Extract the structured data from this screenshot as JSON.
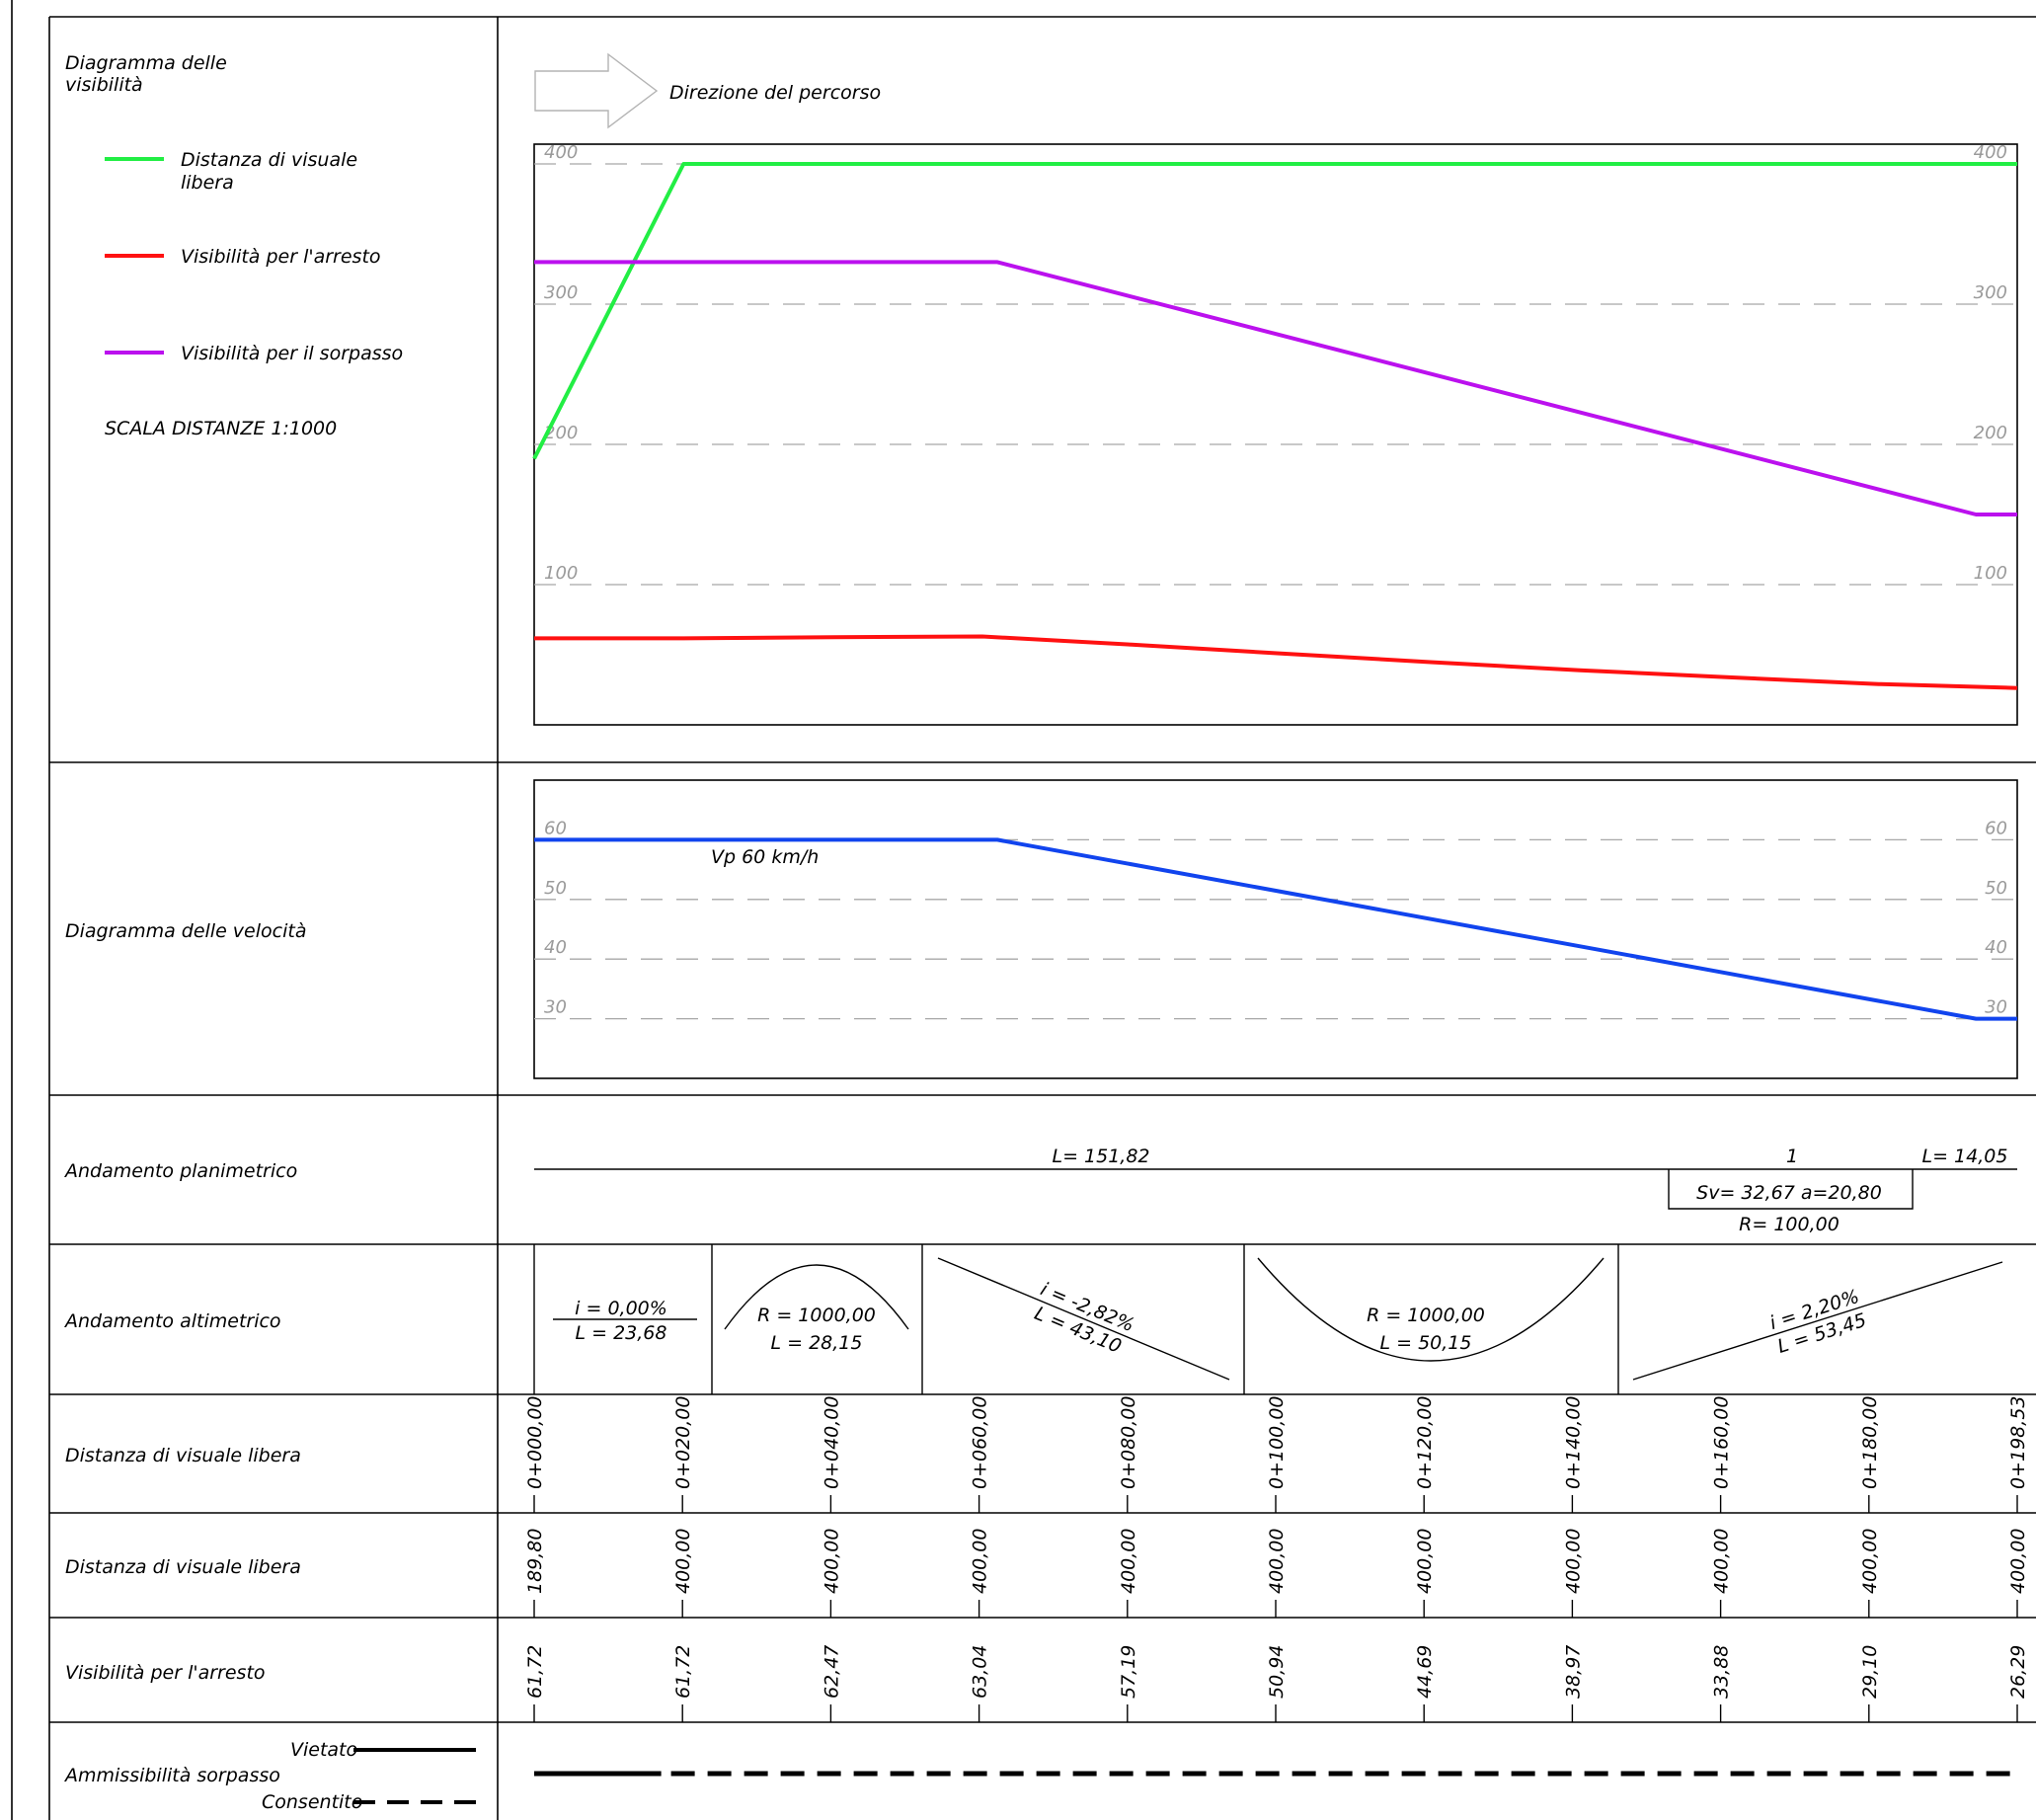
{
  "labels": {
    "visibility_diagram": [
      "Diagramma  delle",
      "visibilità"
    ],
    "direction": "Direzione  del  percorso",
    "legend_free_sight": [
      "Distanza  di  visuale",
      "libera"
    ],
    "legend_stop": "Visibilità  per  l'arresto",
    "legend_overtake": "Visibilità  per  il  sorpasso",
    "scale": "SCALA  DISTANZE      1:1000",
    "speed_diagram": "Diagramma  delle  velocità",
    "speed_note": "Vp  60  km/h",
    "planimetric": "Andamento  planimetrico",
    "altimetric": "Andamento  altimetrico",
    "row_stations": "Distanza  di  visuale  libera",
    "row_free_sight": "Distanza  di  visuale  libera",
    "row_stop": "Visibilità  per  l'arresto",
    "row_overtake": "Ammissibilità  sorpasso",
    "forbidden": "Vietato",
    "allowed": "Consentito"
  },
  "planimetric": {
    "tangent_1": "L=  151,82",
    "curve_index": "1",
    "curve_params": "Sv=  32,67    a=20,80",
    "radius": "R=  100,00",
    "tangent_2": "L=  14,05"
  },
  "altimetric": {
    "seg1": [
      "i  =  0,00%",
      "L  =  23,68"
    ],
    "seg2": [
      "R  =  1000,00",
      "L  =  28,15"
    ],
    "seg3": [
      "i  =  -2,82%",
      "L  =  43,10"
    ],
    "seg4": [
      "R  =  1000,00",
      "L  =  50,15"
    ],
    "seg5": [
      "i  =  2,20%",
      "L  =  53,45"
    ]
  },
  "stations": [
    "0+000,00",
    "0+020,00",
    "0+040,00",
    "0+060,00",
    "0+080,00",
    "0+100,00",
    "0+120,00",
    "0+140,00",
    "0+160,00",
    "0+180,00",
    "0+198,53"
  ],
  "free_sight_values": [
    "189,80",
    "400,00",
    "400,00",
    "400,00",
    "400,00",
    "400,00",
    "400,00",
    "400,00",
    "400,00",
    "400,00",
    "400,00"
  ],
  "stop_values": [
    "61,72",
    "61,72",
    "62,47",
    "63,04",
    "57,19",
    "50,94",
    "44,69",
    "38,97",
    "33,88",
    "29,10",
    "26,29"
  ],
  "colors": {
    "free_sight": "#22ee44",
    "stop": "#ff1111",
    "overtake": "#bb11ee",
    "speed": "#1144ee",
    "grid": "#a8a8a8"
  },
  "chart_data": [
    {
      "type": "line",
      "xlabel": "",
      "ylabel": "",
      "xlim": [
        0,
        198.53
      ],
      "ylim": [
        0,
        400
      ],
      "yticks": [
        100,
        200,
        300,
        400
      ],
      "series": [
        {
          "name": "Distanza  di  visuale  libera",
          "x": [
            0,
            20,
            198.53
          ],
          "y": [
            189.8,
            400,
            400
          ]
        },
        {
          "name": "Visibilità  per  l'arresto",
          "x": [
            0,
            20,
            40,
            60,
            80,
            100,
            120,
            140,
            160,
            180,
            198.53
          ],
          "y": [
            61.72,
            61.72,
            62.47,
            63.04,
            57.19,
            50.94,
            44.69,
            38.97,
            33.88,
            29.1,
            26.29
          ]
        },
        {
          "name": "Visibilità  per  il  sorpasso",
          "x": [
            0,
            62,
            193,
            198.53
          ],
          "y": [
            330,
            330,
            150,
            150
          ]
        }
      ]
    },
    {
      "type": "line",
      "xlabel": "",
      "ylabel": "",
      "xlim": [
        0,
        198.53
      ],
      "ylim": [
        20,
        70
      ],
      "yticks": [
        30,
        40,
        50,
        60
      ],
      "series": [
        {
          "x": [
            0,
            62,
            193,
            198.53
          ],
          "y": [
            60,
            60,
            30,
            30
          ]
        }
      ]
    }
  ],
  "overtaking": {
    "forbidden_to": 17,
    "total": 198.53
  }
}
